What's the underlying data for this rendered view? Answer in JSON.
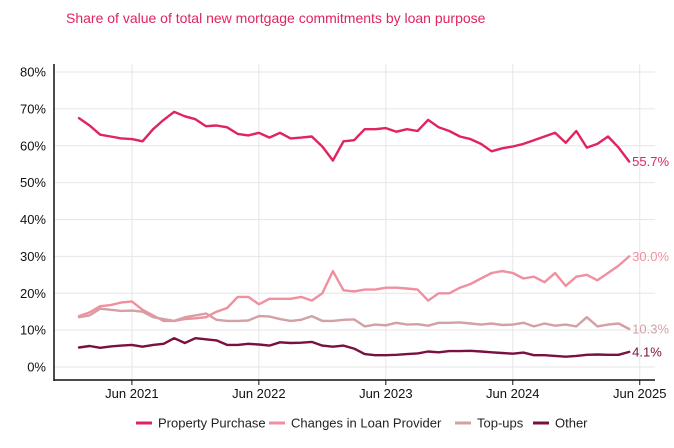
{
  "chart_data": {
    "type": "line",
    "title": "Share of value of total new mortgage commitments by loan purpose",
    "xlabel": "",
    "ylabel": "",
    "ylim": [
      0,
      80
    ],
    "yticks": [
      "0%",
      "10%",
      "20%",
      "30%",
      "40%",
      "50%",
      "60%",
      "70%",
      "80%"
    ],
    "xticks": [
      "Jun 2021",
      "Jun 2022",
      "Jun 2023",
      "Jun 2024",
      "Jun 2025"
    ],
    "grid": true,
    "legend_position": "bottom",
    "x_start": "2021-01",
    "x_end": "2025-06",
    "series": [
      {
        "name": "Property Purchase",
        "color": "#e0245e",
        "end_label": "55.7%",
        "values": [
          67.5,
          65.5,
          63.0,
          62.5,
          62.0,
          61.8,
          61.2,
          64.5,
          67.0,
          69.2,
          68.0,
          67.2,
          65.3,
          65.5,
          65.0,
          63.2,
          62.8,
          63.5,
          62.2,
          63.5,
          62.0,
          62.2,
          62.5,
          59.8,
          56.0,
          61.2,
          61.5,
          64.5,
          64.5,
          64.8,
          63.8,
          64.5,
          64.0,
          67.0,
          65.0,
          64.0,
          62.5,
          61.8,
          60.5,
          58.5,
          59.3,
          59.8,
          60.5,
          61.5,
          62.5,
          63.5,
          60.8,
          64.0,
          59.5,
          60.5,
          62.5,
          59.5,
          55.7
        ]
      },
      {
        "name": "Changes in Loan Provider",
        "color": "#f0909f",
        "end_label": "30.0%",
        "values": [
          13.8,
          14.8,
          16.5,
          16.8,
          17.5,
          17.8,
          15.5,
          14.0,
          12.5,
          12.5,
          13.0,
          13.2,
          13.5,
          15.0,
          16.0,
          19.0,
          19.0,
          17.0,
          18.5,
          18.5,
          18.5,
          19.0,
          18.0,
          20.0,
          26.0,
          20.8,
          20.5,
          21.0,
          21.0,
          21.5,
          21.5,
          21.3,
          21.0,
          18.0,
          20.0,
          20.0,
          21.5,
          22.5,
          24.0,
          25.5,
          26.0,
          25.5,
          24.0,
          24.5,
          23.0,
          25.5,
          22.0,
          24.5,
          25.0,
          23.5,
          25.5,
          27.5,
          30.0
        ]
      },
      {
        "name": "Top-ups",
        "color": "#d4a0a4",
        "end_label": "10.3%",
        "values": [
          13.5,
          14.0,
          15.8,
          15.5,
          15.2,
          15.3,
          15.0,
          13.5,
          13.0,
          12.5,
          13.5,
          14.0,
          14.5,
          12.8,
          12.5,
          12.5,
          12.6,
          13.8,
          13.7,
          13.0,
          12.5,
          12.8,
          13.8,
          12.5,
          12.5,
          12.8,
          12.9,
          11.0,
          11.5,
          11.3,
          12.0,
          11.5,
          11.6,
          11.2,
          12.0,
          12.0,
          12.1,
          11.8,
          11.5,
          11.8,
          11.4,
          11.5,
          12.0,
          11.0,
          11.8,
          11.2,
          11.5,
          11.0,
          13.5,
          11.0,
          11.5,
          11.8,
          10.3
        ]
      },
      {
        "name": "Other",
        "color": "#7a1040",
        "end_label": "4.1%",
        "values": [
          5.3,
          5.7,
          5.2,
          5.6,
          5.8,
          6.0,
          5.5,
          6.0,
          6.3,
          7.8,
          6.5,
          7.8,
          7.5,
          7.2,
          6.0,
          6.0,
          6.3,
          6.1,
          5.8,
          6.7,
          6.5,
          6.6,
          6.8,
          5.8,
          5.5,
          5.8,
          5.0,
          3.5,
          3.2,
          3.2,
          3.3,
          3.5,
          3.7,
          4.2,
          4.0,
          4.3,
          4.3,
          4.4,
          4.2,
          4.0,
          3.8,
          3.6,
          3.9,
          3.2,
          3.2,
          3.0,
          2.8,
          3.0,
          3.3,
          3.4,
          3.3,
          3.3,
          4.1
        ]
      }
    ]
  }
}
